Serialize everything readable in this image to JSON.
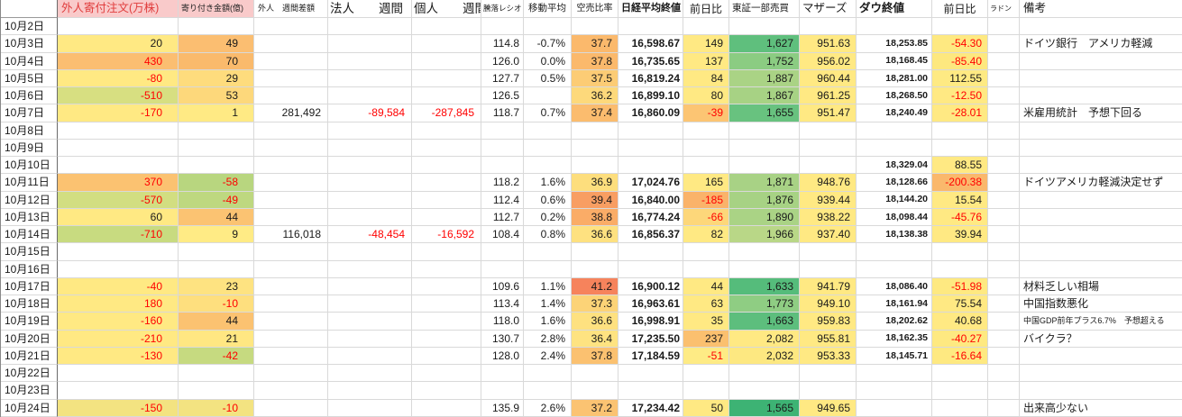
{
  "colors": {
    "negative_text": "#ff0000",
    "header_pink_bg": "#f9caca",
    "header_pink_text": "#e03c3c",
    "grid_line": "#d9d9d9"
  },
  "columns": [
    {
      "key": "date",
      "label": ""
    },
    {
      "key": "gaijin_order",
      "label": "外人寄付注文(万株)"
    },
    {
      "key": "yoritsuki",
      "label": "寄り付き金額(億)"
    },
    {
      "key": "gaijin_week",
      "label": "外人　週間差額"
    },
    {
      "key": "hojin_week",
      "label": "法人　　週間"
    },
    {
      "key": "kojin_week",
      "label": "個人　　週間"
    },
    {
      "key": "ratio",
      "label": "騰落レシオ"
    },
    {
      "key": "ma",
      "label": "移動平均"
    },
    {
      "key": "short",
      "label": "空売比率"
    },
    {
      "key": "nikkei",
      "label": "日経平均終値"
    },
    {
      "key": "nikkei_chg",
      "label": "前日比"
    },
    {
      "key": "tse",
      "label": "東証一部売買"
    },
    {
      "key": "mothers",
      "label": "マザーズ"
    },
    {
      "key": "dow",
      "label": "ダウ終値"
    },
    {
      "key": "dow_chg",
      "label": "前日比"
    },
    {
      "key": "radon",
      "label": "ラドン"
    },
    {
      "key": "remark",
      "label": "備考"
    }
  ],
  "rows": [
    {
      "date": "10月2日",
      "cells": {}
    },
    {
      "date": "10月3日",
      "cells": {
        "gaijin_order": {
          "v": "20",
          "bg": "#ffe983"
        },
        "yoritsuki": {
          "v": "49",
          "bg": "#fbbe71"
        },
        "ratio": {
          "v": "114.8"
        },
        "ma": {
          "v": "-0.7%"
        },
        "short": {
          "v": "37.7",
          "bg": "#fbb96c"
        },
        "nikkei": {
          "v": "16,598.67"
        },
        "nikkei_chg": {
          "v": "149",
          "bg": "#ffe983"
        },
        "tse": {
          "v": "1,627",
          "bg": "#5fbf7d"
        },
        "mothers": {
          "v": "951.63",
          "bg": "#ffe983"
        },
        "dow": {
          "v": "18,253.85"
        },
        "dow_chg": {
          "v": "-54.30",
          "bg": "#fee981",
          "r": 1
        },
        "remark": {
          "v": "ドイツ銀行　アメリカ軽減"
        }
      }
    },
    {
      "date": "10月4日",
      "cells": {
        "gaijin_order": {
          "v": "430",
          "bg": "#fbbe71",
          "r": 1
        },
        "yoritsuki": {
          "v": "70",
          "bg": "#faba6c"
        },
        "ratio": {
          "v": "126.0"
        },
        "ma": {
          "v": "0.0%"
        },
        "short": {
          "v": "37.8",
          "bg": "#fbb96c"
        },
        "nikkei": {
          "v": "16,735.65"
        },
        "nikkei_chg": {
          "v": "137",
          "bg": "#ffe983"
        },
        "tse": {
          "v": "1,752",
          "bg": "#8bcc82"
        },
        "mothers": {
          "v": "956.02",
          "bg": "#ffe983"
        },
        "dow": {
          "v": "18,168.45"
        },
        "dow_chg": {
          "v": "-85.40",
          "bg": "#fde87f",
          "r": 1
        }
      }
    },
    {
      "date": "10月5日",
      "cells": {
        "gaijin_order": {
          "v": "-80",
          "bg": "#ffe983",
          "r": 1
        },
        "yoritsuki": {
          "v": "29",
          "bg": "#fedc7d"
        },
        "ratio": {
          "v": "127.7"
        },
        "ma": {
          "v": "0.5%"
        },
        "short": {
          "v": "37.5",
          "bg": "#fccc75"
        },
        "nikkei": {
          "v": "16,819.24"
        },
        "nikkei_chg": {
          "v": "84",
          "bg": "#ffe983"
        },
        "tse": {
          "v": "1,887",
          "bg": "#aad385"
        },
        "mothers": {
          "v": "960.44",
          "bg": "#ffe983"
        },
        "dow": {
          "v": "18,281.00"
        },
        "dow_chg": {
          "v": "112.55",
          "bg": "#feea83"
        }
      }
    },
    {
      "date": "10月6日",
      "cells": {
        "gaijin_order": {
          "v": "-510",
          "bg": "#d7df81",
          "r": 1
        },
        "yoritsuki": {
          "v": "53",
          "bg": "#fdd87b"
        },
        "ratio": {
          "v": "126.5"
        },
        "short": {
          "v": "36.2",
          "bg": "#fdd97b"
        },
        "nikkei": {
          "v": "16,899.10"
        },
        "nikkei_chg": {
          "v": "80",
          "bg": "#ffe983"
        },
        "tse": {
          "v": "1,867",
          "bg": "#a7d284"
        },
        "mothers": {
          "v": "961.25",
          "bg": "#ffe983"
        },
        "dow": {
          "v": "18,268.50"
        },
        "dow_chg": {
          "v": "-12.50",
          "bg": "#ffe983",
          "r": 1
        }
      }
    },
    {
      "date": "10月7日",
      "cells": {
        "gaijin_order": {
          "v": "-170",
          "bg": "#ffe983",
          "r": 1
        },
        "yoritsuki": {
          "v": "1",
          "bg": "#ffea84"
        },
        "gaijin_week": {
          "v": "281,492"
        },
        "hojin_week": {
          "v": "-89,584",
          "r": 1
        },
        "kojin_week": {
          "v": "-287,845",
          "r": 1
        },
        "ratio": {
          "v": "118.7"
        },
        "ma": {
          "v": "0.7%"
        },
        "short": {
          "v": "37.4",
          "bg": "#fbbc6e"
        },
        "nikkei": {
          "v": "16,860.09"
        },
        "nikkei_chg": {
          "v": "-39",
          "bg": "#fcc573",
          "r": 1
        },
        "tse": {
          "v": "1,655",
          "bg": "#68c27f"
        },
        "mothers": {
          "v": "951.47",
          "bg": "#ffe983"
        },
        "dow": {
          "v": "18,240.49"
        },
        "dow_chg": {
          "v": "-28.01",
          "bg": "#ffe983",
          "r": 1
        },
        "remark": {
          "v": "米雇用統計　予想下回る"
        }
      }
    },
    {
      "date": "10月8日",
      "cells": {}
    },
    {
      "date": "10月9日",
      "cells": {}
    },
    {
      "date": "10月10日",
      "cells": {
        "dow": {
          "v": "18,329.04"
        },
        "dow_chg": {
          "v": "88.55",
          "bg": "#ffe983"
        }
      }
    },
    {
      "date": "10月11日",
      "cells": {
        "gaijin_order": {
          "v": "370",
          "bg": "#fbc271",
          "r": 1
        },
        "yoritsuki": {
          "v": "-58",
          "bg": "#b8d67f",
          "r": 1
        },
        "ratio": {
          "v": "118.2"
        },
        "ma": {
          "v": "1.6%"
        },
        "short": {
          "v": "36.9",
          "bg": "#fdde7d"
        },
        "nikkei": {
          "v": "17,024.76"
        },
        "nikkei_chg": {
          "v": "165",
          "bg": "#ffe983"
        },
        "tse": {
          "v": "1,871",
          "bg": "#a8d285"
        },
        "mothers": {
          "v": "948.76",
          "bg": "#ffe983"
        },
        "dow": {
          "v": "18,128.66"
        },
        "dow_chg": {
          "v": "-200.38",
          "bg": "#fab86c",
          "r": 1
        },
        "remark": {
          "v": "ドイツアメリカ軽減決定せず"
        }
      }
    },
    {
      "date": "10月12日",
      "cells": {
        "gaijin_order": {
          "v": "-570",
          "bg": "#d2de81",
          "r": 1
        },
        "yoritsuki": {
          "v": "-49",
          "bg": "#bed880",
          "r": 1
        },
        "ratio": {
          "v": "112.4"
        },
        "ma": {
          "v": "0.6%"
        },
        "short": {
          "v": "39.4",
          "bg": "#f89e62"
        },
        "nikkei": {
          "v": "16,840.00"
        },
        "nikkei_chg": {
          "v": "-185",
          "bg": "#fab36a",
          "r": 1
        },
        "tse": {
          "v": "1,876",
          "bg": "#a7d284"
        },
        "mothers": {
          "v": "939.44",
          "bg": "#ffe983"
        },
        "dow": {
          "v": "18,144.20"
        },
        "dow_chg": {
          "v": "15.54",
          "bg": "#ffe983"
        }
      }
    },
    {
      "date": "10月13日",
      "cells": {
        "gaijin_order": {
          "v": "60",
          "bg": "#ffe983"
        },
        "yoritsuki": {
          "v": "44",
          "bg": "#fbc372"
        },
        "ratio": {
          "v": "112.7"
        },
        "ma": {
          "v": "0.2%"
        },
        "short": {
          "v": "38.8",
          "bg": "#faac67"
        },
        "nikkei": {
          "v": "16,774.24"
        },
        "nikkei_chg": {
          "v": "-66",
          "bg": "#fdd77a",
          "r": 1
        },
        "tse": {
          "v": "1,890",
          "bg": "#aad385"
        },
        "mothers": {
          "v": "938.22",
          "bg": "#ffe983"
        },
        "dow": {
          "v": "18,098.44"
        },
        "dow_chg": {
          "v": "-45.76",
          "bg": "#ffe983",
          "r": 1
        }
      }
    },
    {
      "date": "10月14日",
      "cells": {
        "gaijin_order": {
          "v": "-710",
          "bg": "#c8db80",
          "r": 1
        },
        "yoritsuki": {
          "v": "9",
          "bg": "#ffeb85"
        },
        "gaijin_week": {
          "v": "116,018"
        },
        "hojin_week": {
          "v": "-48,454",
          "r": 1
        },
        "kojin_week": {
          "v": "-16,592",
          "r": 1
        },
        "ratio": {
          "v": "108.4"
        },
        "ma": {
          "v": "0.8%"
        },
        "short": {
          "v": "36.6",
          "bg": "#fee180"
        },
        "nikkei": {
          "v": "16,856.37"
        },
        "nikkei_chg": {
          "v": "82",
          "bg": "#ffe983"
        },
        "tse": {
          "v": "1,966",
          "bg": "#b9d787"
        },
        "mothers": {
          "v": "937.40",
          "bg": "#ffe983"
        },
        "dow": {
          "v": "18,138.38"
        },
        "dow_chg": {
          "v": "39.94",
          "bg": "#ffe983"
        }
      }
    },
    {
      "date": "10月15日",
      "cells": {}
    },
    {
      "date": "10月16日",
      "cells": {}
    },
    {
      "date": "10月17日",
      "cells": {
        "gaijin_order": {
          "v": "-40",
          "bg": "#ffe983",
          "r": 1
        },
        "yoritsuki": {
          "v": "23",
          "bg": "#fee381"
        },
        "ratio": {
          "v": "109.6"
        },
        "ma": {
          "v": "1.1%"
        },
        "short": {
          "v": "41.2",
          "bg": "#f6835c"
        },
        "nikkei": {
          "v": "16,900.12"
        },
        "nikkei_chg": {
          "v": "44",
          "bg": "#ffe983"
        },
        "tse": {
          "v": "1,633",
          "bg": "#55bc7b"
        },
        "mothers": {
          "v": "941.79",
          "bg": "#ffe983"
        },
        "dow": {
          "v": "18,086.40"
        },
        "dow_chg": {
          "v": "-51.98",
          "bg": "#fee981",
          "r": 1
        },
        "remark": {
          "v": "材料乏しい相場"
        }
      }
    },
    {
      "date": "10月18日",
      "cells": {
        "gaijin_order": {
          "v": "180",
          "bg": "#ffe983",
          "r": 1
        },
        "yoritsuki": {
          "v": "-10",
          "bg": "#fedf7e",
          "r": 1
        },
        "ratio": {
          "v": "113.4"
        },
        "ma": {
          "v": "1.4%"
        },
        "short": {
          "v": "37.3",
          "bg": "#fcd377"
        },
        "nikkei": {
          "v": "16,963.61"
        },
        "nikkei_chg": {
          "v": "63",
          "bg": "#ffe983"
        },
        "tse": {
          "v": "1,773",
          "bg": "#8fcd83"
        },
        "mothers": {
          "v": "949.10",
          "bg": "#ffe983"
        },
        "dow": {
          "v": "18,161.94"
        },
        "dow_chg": {
          "v": "75.54",
          "bg": "#ffe983"
        },
        "remark": {
          "v": "中国指数悪化"
        }
      }
    },
    {
      "date": "10月19日",
      "cells": {
        "gaijin_order": {
          "v": "-160",
          "bg": "#ffe983",
          "r": 1
        },
        "yoritsuki": {
          "v": "44",
          "bg": "#fbc271"
        },
        "ratio": {
          "v": "118.0"
        },
        "ma": {
          "v": "1.6%"
        },
        "short": {
          "v": "36.6",
          "bg": "#fee180"
        },
        "nikkei": {
          "v": "16,998.91"
        },
        "nikkei_chg": {
          "v": "35",
          "bg": "#ffe983"
        },
        "tse": {
          "v": "1,663",
          "bg": "#5dbe7d"
        },
        "mothers": {
          "v": "959.83",
          "bg": "#ffe983"
        },
        "dow": {
          "v": "18,202.62"
        },
        "dow_chg": {
          "v": "40.68",
          "bg": "#ffe983"
        },
        "remark": {
          "v": "中国GDP前年プラス6.7%　予想超える",
          "small": 1
        }
      }
    },
    {
      "date": "10月20日",
      "cells": {
        "gaijin_order": {
          "v": "-210",
          "bg": "#ffe983",
          "r": 1
        },
        "yoritsuki": {
          "v": "21",
          "bg": "#ffe782"
        },
        "ratio": {
          "v": "130.7"
        },
        "ma": {
          "v": "2.8%"
        },
        "short": {
          "v": "36.4",
          "bg": "#fee381"
        },
        "nikkei": {
          "v": "17,235.50"
        },
        "nikkei_chg": {
          "v": "237",
          "bg": "#fbc06f"
        },
        "tse": {
          "v": "2,082",
          "bg": "#ffe983"
        },
        "mothers": {
          "v": "955.81",
          "bg": "#ffe983"
        },
        "dow": {
          "v": "18,162.35"
        },
        "dow_chg": {
          "v": "-40.27",
          "bg": "#fee981",
          "r": 1
        },
        "remark": {
          "v": "バイクラ？"
        }
      }
    },
    {
      "date": "10月21日",
      "cells": {
        "gaijin_order": {
          "v": "-130",
          "bg": "#ffe983",
          "r": 1
        },
        "yoritsuki": {
          "v": "-42",
          "bg": "#c6da80",
          "r": 1
        },
        "ratio": {
          "v": "128.0"
        },
        "ma": {
          "v": "2.4%"
        },
        "short": {
          "v": "37.8",
          "bg": "#fbc170"
        },
        "nikkei": {
          "v": "17,184.59"
        },
        "nikkei_chg": {
          "v": "-51",
          "bg": "#feeb85",
          "r": 1
        },
        "tse": {
          "v": "2,032",
          "bg": "#fde881"
        },
        "mothers": {
          "v": "953.33",
          "bg": "#ffe983"
        },
        "dow": {
          "v": "18,145.71"
        },
        "dow_chg": {
          "v": "-16.64",
          "bg": "#fee981",
          "r": 1
        }
      }
    },
    {
      "date": "10月22日",
      "cells": {}
    },
    {
      "date": "10月23日",
      "cells": {}
    },
    {
      "date": "10月24日",
      "cells": {
        "gaijin_order": {
          "v": "-150",
          "bg": "#f3e381",
          "r": 1
        },
        "yoritsuki": {
          "v": "-10",
          "bg": "#f3e381",
          "r": 1
        },
        "ratio": {
          "v": "135.9"
        },
        "ma": {
          "v": "2.6%"
        },
        "short": {
          "v": "37.2",
          "bg": "#fbc372"
        },
        "nikkei": {
          "v": "17,234.42"
        },
        "nikkei_chg": {
          "v": "50",
          "bg": "#ffe983"
        },
        "tse": {
          "v": "1,565",
          "bg": "#3db374"
        },
        "mothers": {
          "v": "949.65",
          "bg": "#ffe983"
        },
        "remark": {
          "v": "出来高少ない"
        }
      }
    }
  ]
}
